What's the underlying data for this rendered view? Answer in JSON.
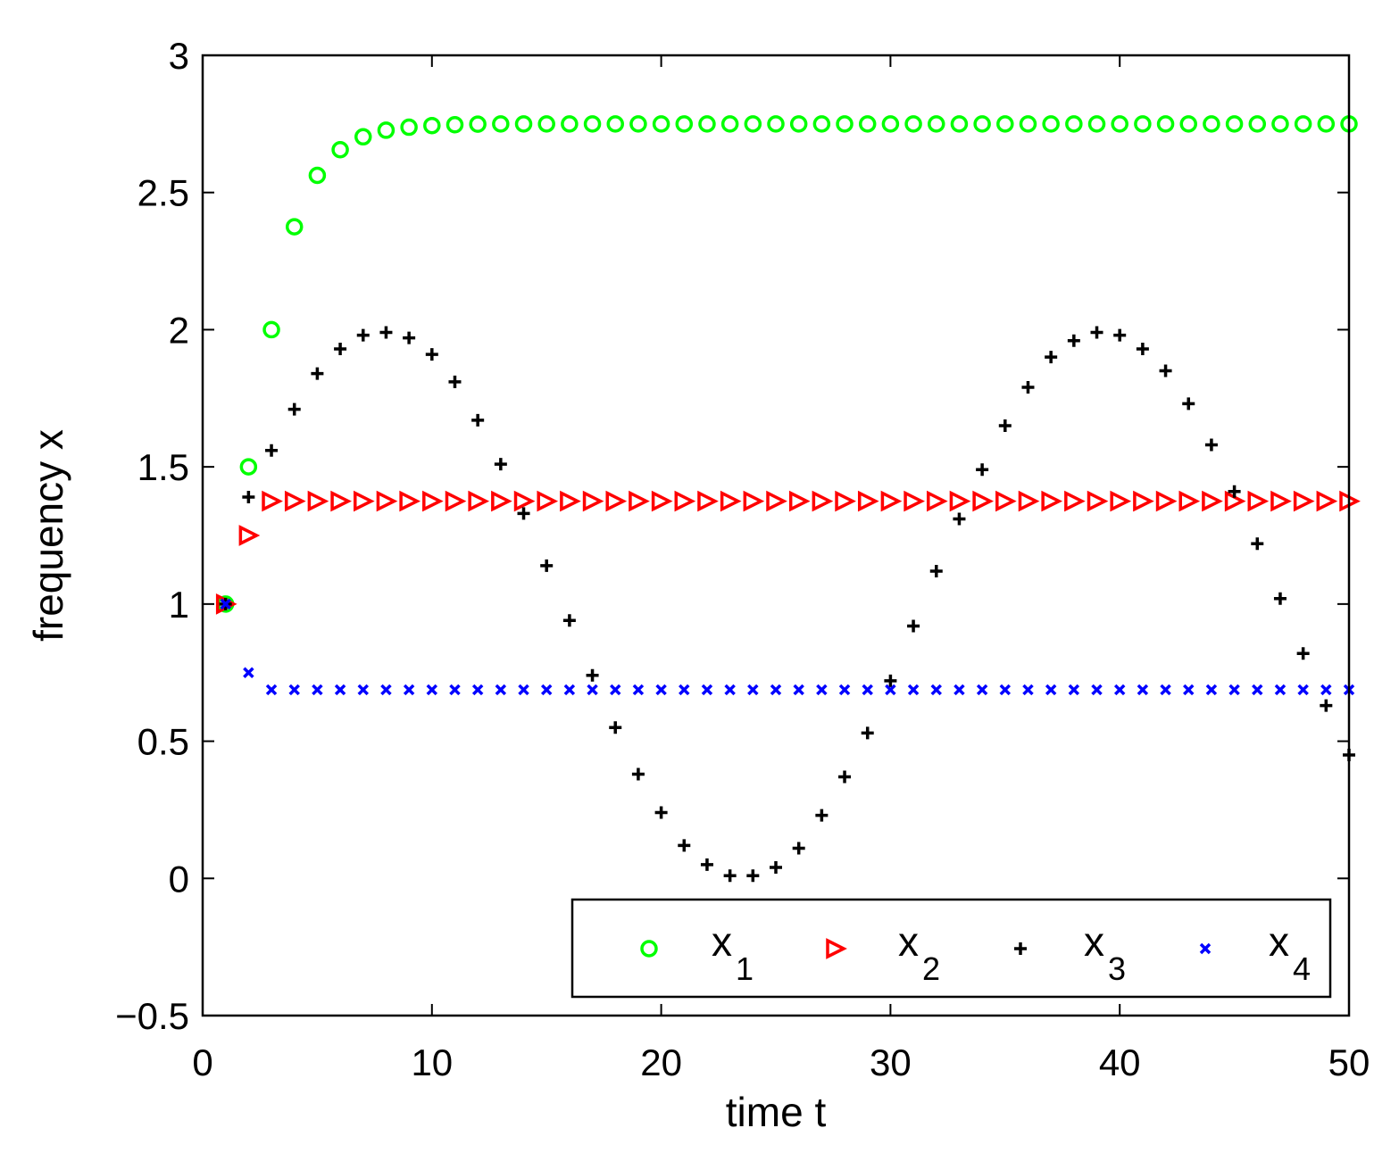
{
  "chart_data": {
    "type": "scatter",
    "title": "",
    "xlabel": "time t",
    "ylabel": "frequency x",
    "xlim": [
      0,
      50
    ],
    "ylim": [
      -0.5,
      3
    ],
    "grid": false,
    "legend_position": "bottom-right",
    "x_ticks": [
      0,
      10,
      20,
      30,
      40,
      50
    ],
    "x_tick_labels": [
      "0",
      "10",
      "20",
      "30",
      "40",
      "50"
    ],
    "y_ticks": [
      -0.5,
      0,
      0.5,
      1,
      1.5,
      2,
      2.5,
      3
    ],
    "y_tick_labels": [
      "−0.5",
      "0",
      "0.5",
      "1",
      "1.5",
      "2",
      "2.5",
      "3"
    ],
    "x": [
      1,
      2,
      3,
      4,
      5,
      6,
      7,
      8,
      9,
      10,
      11,
      12,
      13,
      14,
      15,
      16,
      17,
      18,
      19,
      20,
      21,
      22,
      23,
      24,
      25,
      26,
      27,
      28,
      29,
      30,
      31,
      32,
      33,
      34,
      35,
      36,
      37,
      38,
      39,
      40,
      41,
      42,
      43,
      44,
      45,
      46,
      47,
      48,
      49,
      50
    ],
    "series": [
      {
        "name": "x_1",
        "label_base": "x",
        "label_sub": "1",
        "marker": "circle",
        "color": "#00ff00",
        "values": [
          1.0,
          1.5,
          2.0,
          2.375,
          2.5625,
          2.656,
          2.703,
          2.727,
          2.738,
          2.744,
          2.747,
          2.749,
          2.75,
          2.75,
          2.75,
          2.75,
          2.75,
          2.75,
          2.75,
          2.75,
          2.75,
          2.75,
          2.75,
          2.75,
          2.75,
          2.75,
          2.75,
          2.75,
          2.75,
          2.75,
          2.75,
          2.75,
          2.75,
          2.75,
          2.75,
          2.75,
          2.75,
          2.75,
          2.75,
          2.75,
          2.75,
          2.75,
          2.75,
          2.75,
          2.75,
          2.75,
          2.75,
          2.75,
          2.75,
          2.75
        ]
      },
      {
        "name": "x_2",
        "label_base": "x",
        "label_sub": "2",
        "marker": "triangle-right",
        "color": "#ff0000",
        "values": [
          1.0,
          1.25,
          1.375,
          1.375,
          1.375,
          1.375,
          1.375,
          1.375,
          1.375,
          1.375,
          1.375,
          1.375,
          1.375,
          1.375,
          1.375,
          1.375,
          1.375,
          1.375,
          1.375,
          1.375,
          1.375,
          1.375,
          1.375,
          1.375,
          1.375,
          1.375,
          1.375,
          1.375,
          1.375,
          1.375,
          1.375,
          1.375,
          1.375,
          1.375,
          1.375,
          1.375,
          1.375,
          1.375,
          1.375,
          1.375,
          1.375,
          1.375,
          1.375,
          1.375,
          1.375,
          1.375,
          1.375,
          1.375,
          1.375,
          1.375
        ]
      },
      {
        "name": "x_3",
        "label_base": "x",
        "label_sub": "3",
        "marker": "plus",
        "color": "#000000",
        "values": [
          1.0,
          1.39,
          1.56,
          1.71,
          1.84,
          1.93,
          1.98,
          1.99,
          1.97,
          1.91,
          1.81,
          1.67,
          1.51,
          1.33,
          1.14,
          0.94,
          0.74,
          0.55,
          0.38,
          0.24,
          0.12,
          0.05,
          0.01,
          0.01,
          0.04,
          0.11,
          0.23,
          0.37,
          0.53,
          0.72,
          0.92,
          1.12,
          1.31,
          1.49,
          1.65,
          1.79,
          1.9,
          1.96,
          1.99,
          1.98,
          1.93,
          1.85,
          1.73,
          1.58,
          1.41,
          1.22,
          1.02,
          0.82,
          0.63,
          0.45
        ]
      },
      {
        "name": "x_4",
        "label_base": "x",
        "label_sub": "4",
        "marker": "x",
        "color": "#0000ff",
        "values": [
          1.0,
          0.75,
          0.6875,
          0.6875,
          0.6875,
          0.6875,
          0.6875,
          0.6875,
          0.6875,
          0.6875,
          0.6875,
          0.6875,
          0.6875,
          0.6875,
          0.6875,
          0.6875,
          0.6875,
          0.6875,
          0.6875,
          0.6875,
          0.6875,
          0.6875,
          0.6875,
          0.6875,
          0.6875,
          0.6875,
          0.6875,
          0.6875,
          0.6875,
          0.6875,
          0.6875,
          0.6875,
          0.6875,
          0.6875,
          0.6875,
          0.6875,
          0.6875,
          0.6875,
          0.6875,
          0.6875,
          0.6875,
          0.6875,
          0.6875,
          0.6875,
          0.6875,
          0.6875,
          0.6875,
          0.6875,
          0.6875,
          0.6875
        ]
      }
    ]
  }
}
